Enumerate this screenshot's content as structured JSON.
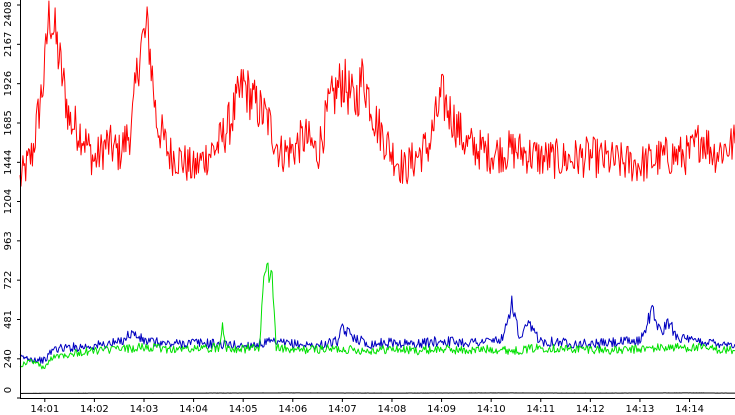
{
  "chart_data": {
    "type": "line",
    "title": "",
    "xlabel": "",
    "ylabel": "",
    "x_start": "14:00:30",
    "x_end": "14:14:55",
    "ylim": [
      0,
      2408
    ],
    "y_ticks": [
      0,
      240,
      481,
      722,
      963,
      1204,
      1444,
      1685,
      1926,
      2167,
      2408
    ],
    "x_ticks": [
      "14:01",
      "14:02",
      "14:03",
      "14:04",
      "14:05",
      "14:06",
      "14:07",
      "14:08",
      "14:09",
      "14:10",
      "14:11",
      "14:12",
      "14:13",
      "14:14"
    ],
    "grid": false,
    "legend": "none",
    "series": [
      {
        "color": "#ff0000",
        "x": [
          "14:00:30",
          "14:00:45",
          "14:01:00",
          "14:01:05",
          "14:01:15",
          "14:01:30",
          "14:01:45",
          "14:02:00",
          "14:02:15",
          "14:02:30",
          "14:02:45",
          "14:02:55",
          "14:03:05",
          "14:03:15",
          "14:03:30",
          "14:03:45",
          "14:04:00",
          "14:04:15",
          "14:04:30",
          "14:04:45",
          "14:05:00",
          "14:05:15",
          "14:05:30",
          "14:05:45",
          "14:06:00",
          "14:06:15",
          "14:06:30",
          "14:06:45",
          "14:07:00",
          "14:07:15",
          "14:07:25",
          "14:07:40",
          "14:08:00",
          "14:08:15",
          "14:08:30",
          "14:08:45",
          "14:09:00",
          "14:09:15",
          "14:09:30",
          "14:10:00",
          "14:10:30",
          "14:11:00",
          "14:11:30",
          "14:12:00",
          "14:12:30",
          "14:13:00",
          "14:13:30",
          "14:14:00",
          "14:14:15",
          "14:14:30",
          "14:14:55"
        ],
        "values": [
          1330,
          1500,
          2000,
          2400,
          2150,
          1700,
          1620,
          1450,
          1560,
          1500,
          1650,
          2150,
          2250,
          1700,
          1500,
          1460,
          1400,
          1480,
          1550,
          1700,
          1920,
          1800,
          1700,
          1500,
          1520,
          1600,
          1500,
          1800,
          1950,
          1800,
          1980,
          1700,
          1500,
          1400,
          1480,
          1550,
          1850,
          1700,
          1550,
          1500,
          1520,
          1470,
          1460,
          1480,
          1450,
          1430,
          1480,
          1490,
          1600,
          1500,
          1560
        ]
      },
      {
        "color": "#0000c0",
        "x": [
          "14:00:30",
          "14:01:00",
          "14:01:10",
          "14:01:30",
          "14:02:00",
          "14:02:30",
          "14:02:45",
          "14:03:00",
          "14:03:30",
          "14:04:00",
          "14:04:30",
          "14:05:00",
          "14:05:30",
          "14:06:00",
          "14:06:30",
          "14:06:55",
          "14:07:00",
          "14:07:30",
          "14:08:00",
          "14:08:30",
          "14:09:00",
          "14:09:30",
          "14:10:00",
          "14:10:15",
          "14:10:25",
          "14:10:35",
          "14:10:45",
          "14:11:00",
          "14:11:30",
          "14:12:00",
          "14:12:30",
          "14:13:00",
          "14:13:15",
          "14:13:25",
          "14:13:35",
          "14:13:45",
          "14:14:00",
          "14:14:30",
          "14:14:55"
        ],
        "values": [
          250,
          230,
          300,
          310,
          320,
          340,
          400,
          350,
          330,
          340,
          330,
          320,
          340,
          330,
          320,
          350,
          420,
          330,
          340,
          330,
          350,
          340,
          350,
          360,
          590,
          350,
          450,
          350,
          340,
          330,
          340,
          350,
          540,
          400,
          460,
          380,
          350,
          340,
          330
        ]
      },
      {
        "color": "#00e000",
        "x": [
          "14:00:30",
          "14:00:45",
          "14:01:00",
          "14:01:10",
          "14:01:30",
          "14:02:00",
          "14:02:30",
          "14:03:00",
          "14:03:30",
          "14:04:00",
          "14:04:30",
          "14:04:35",
          "14:04:40",
          "14:05:00",
          "14:05:20",
          "14:05:25",
          "14:05:35",
          "14:05:40",
          "14:06:00",
          "14:06:30",
          "14:07:00",
          "14:07:30",
          "14:08:00",
          "14:08:30",
          "14:09:00",
          "14:09:30",
          "14:10:00",
          "14:10:30",
          "14:11:00",
          "14:11:30",
          "14:12:00",
          "14:12:30",
          "14:13:00",
          "14:13:30",
          "14:14:00",
          "14:14:30",
          "14:14:55"
        ],
        "values": [
          200,
          230,
          180,
          260,
          270,
          290,
          300,
          310,
          300,
          300,
          310,
          440,
          310,
          300,
          310,
          760,
          760,
          310,
          290,
          300,
          300,
          290,
          300,
          290,
          300,
          290,
          300,
          290,
          310,
          300,
          300,
          290,
          300,
          310,
          310,
          300,
          290
        ]
      },
      {
        "color": "#000000",
        "x": [
          "14:00:30",
          "14:02:00",
          "14:04:00",
          "14:06:00",
          "14:08:00",
          "14:10:00",
          "14:12:00",
          "14:14:00",
          "14:14:55"
        ],
        "values": [
          28,
          30,
          30,
          31,
          30,
          31,
          30,
          31,
          30
        ]
      }
    ]
  }
}
